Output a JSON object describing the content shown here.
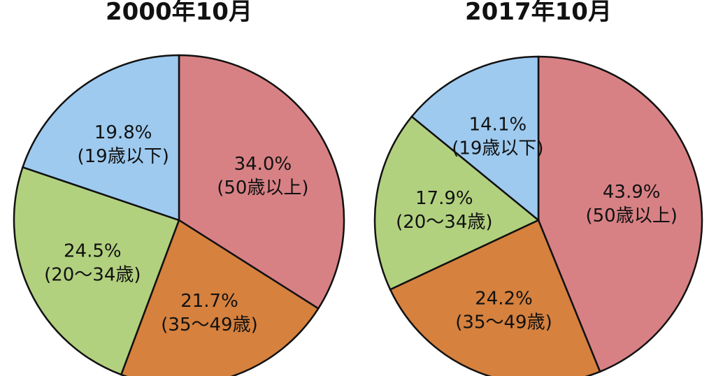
{
  "chart_data": [
    {
      "type": "pie",
      "title": "2000年10月",
      "slices": [
        {
          "label": "(50歳以上)",
          "value": 34.0,
          "value_label": "34.0%",
          "color": "#d88185"
        },
        {
          "label": "(35〜49歳)",
          "value": 21.7,
          "value_label": "21.7%",
          "color": "#d6813e"
        },
        {
          "label": "(20〜34歳)",
          "value": 24.5,
          "value_label": "24.5%",
          "color": "#b2d17f"
        },
        {
          "label": "(19歳以下)",
          "value": 19.8,
          "value_label": "19.8%",
          "color": "#9ecaef"
        }
      ]
    },
    {
      "type": "pie",
      "title": "2017年10月",
      "slices": [
        {
          "label": "(50歳以上)",
          "value": 43.9,
          "value_label": "43.9%",
          "color": "#d88185"
        },
        {
          "label": "(35〜49歳)",
          "value": 24.2,
          "value_label": "24.2%",
          "color": "#d6813e"
        },
        {
          "label": "(20〜34歳)",
          "value": 17.9,
          "value_label": "17.9%",
          "color": "#b2d17f"
        },
        {
          "label": "(19歳以下)",
          "value": 14.1,
          "value_label": "14.1%",
          "color": "#9ecaef"
        }
      ]
    }
  ]
}
